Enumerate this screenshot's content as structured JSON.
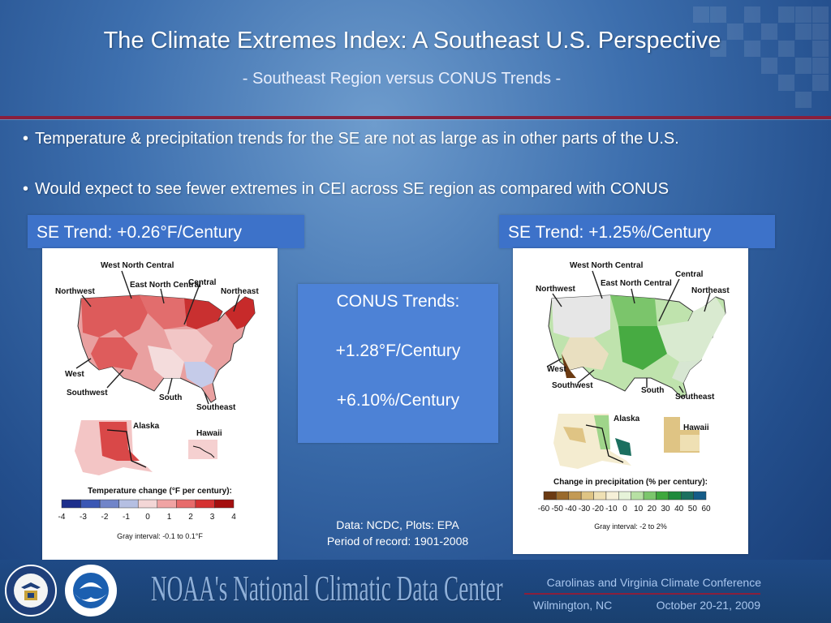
{
  "slide": {
    "title": "The Climate Extremes Index:  A Southeast U.S. Perspective",
    "subtitle": "- Southeast Region versus CONUS Trends -"
  },
  "bullets": [
    "Temperature & precipitation trends for the SE are not as large as in other parts of the U.S.",
    "Would expect to see fewer extremes in CEI across SE region as compared with CONUS"
  ],
  "left_panel": {
    "trend_label": "SE Trend:  +0.26°F/Century",
    "regions": {
      "west_north_central": "West North Central",
      "northwest": "Northwest",
      "east_north_central": "East North Central",
      "central": "Central",
      "northeast": "Northeast",
      "west": "West",
      "southwest": "Southwest",
      "south": "South",
      "southeast": "Southeast",
      "alaska": "Alaska",
      "hawaii": "Hawaii"
    },
    "legend_title": "Temperature change (°F per century):",
    "legend_ticks": [
      "-4",
      "-3",
      "-2",
      "-1",
      "0",
      "1",
      "2",
      "3",
      "4"
    ],
    "legend_colors": [
      "#1d2f8c",
      "#3b57b4",
      "#7185c9",
      "#b5bfe2",
      "#f3d6d6",
      "#f0a3a3",
      "#e76b6b",
      "#d53232",
      "#a40f0f"
    ],
    "gray_interval": "Gray interval: -0.1 to 0.1°F"
  },
  "right_panel": {
    "trend_label": "SE Trend:  +1.25%/Century",
    "regions": {
      "west_north_central": "West North Central",
      "northwest": "Northwest",
      "east_north_central": "East North Central",
      "central": "Central",
      "northeast": "Northeast",
      "west": "West",
      "southwest": "Southwest",
      "south": "South",
      "southeast": "Southeast",
      "alaska": "Alaska",
      "hawaii": "Hawaii"
    },
    "legend_title": "Change in precipitation (% per century):",
    "legend_ticks": [
      "-60",
      "-50",
      "-40",
      "-30",
      "-20",
      "-10",
      "0",
      "10",
      "20",
      "30",
      "40",
      "50",
      "60"
    ],
    "legend_colors": [
      "#6b3a12",
      "#9a6a2c",
      "#c39a55",
      "#dfc484",
      "#efe0b4",
      "#f6f0d8",
      "#e6f3d9",
      "#b7e0a4",
      "#7cc66c",
      "#3fa83d",
      "#1f8a3c",
      "#1b6f5f",
      "#155c88"
    ],
    "gray_interval": "Gray interval: -2 to 2%"
  },
  "conus": {
    "heading": "CONUS Trends:",
    "temperature": "+1.28°F/Century",
    "precipitation": "+6.10%/Century"
  },
  "source": {
    "line1": "Data:  NCDC, Plots:  EPA",
    "line2": "Period of record:  1901-2008"
  },
  "footer": {
    "ncdc": "NOAA's National Climatic Data Center",
    "conference": "Carolinas and Virginia Climate Conference",
    "location": "Wilmington, NC",
    "dates": "October 20-21, 2009"
  },
  "colors": {
    "accent_rule": "#8a1f3c",
    "trend_box": "#3d72c9",
    "conus_box": "#4d82d6"
  }
}
